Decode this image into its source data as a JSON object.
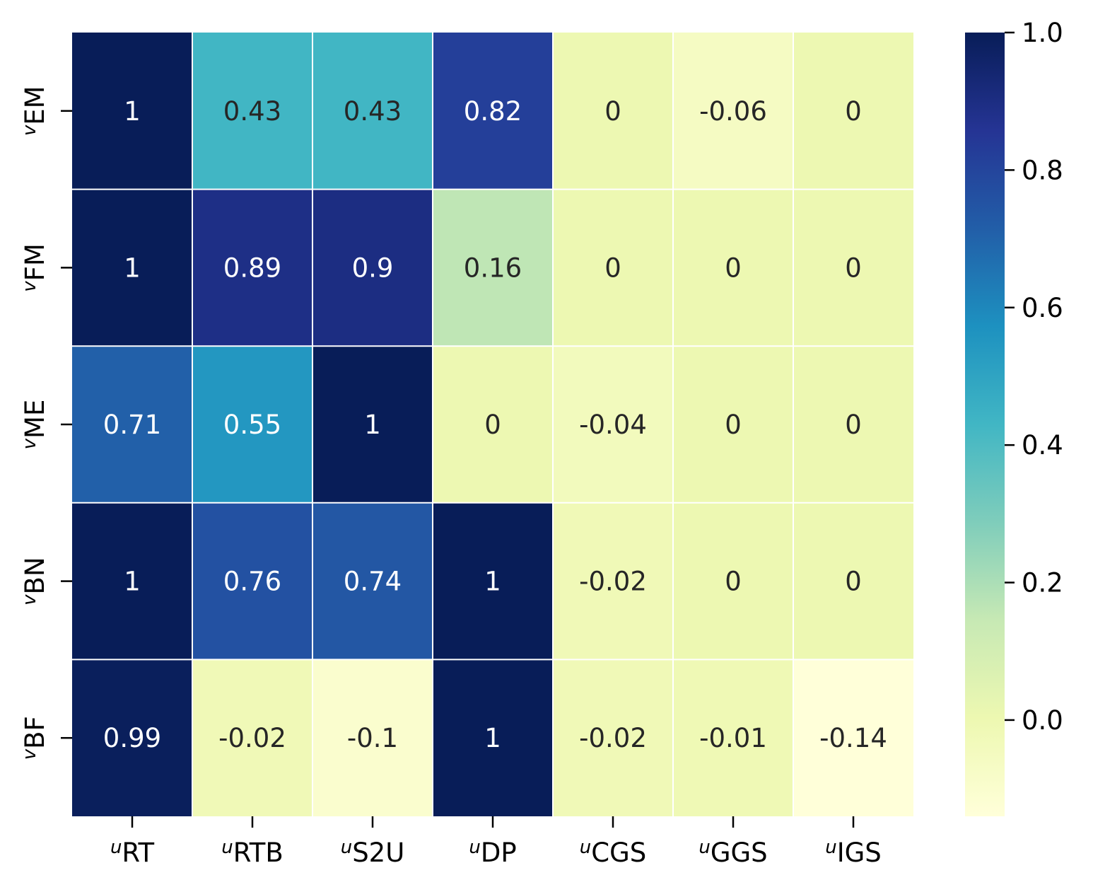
{
  "chart_data": {
    "type": "heatmap",
    "title": "",
    "xlabel": "",
    "ylabel": "",
    "x_tick_prefix": "u",
    "y_tick_prefix": "v",
    "columns": [
      "RT",
      "RTB",
      "S2U",
      "DP",
      "CGS",
      "GGS",
      "IGS"
    ],
    "rows": [
      "EM",
      "FM",
      "ME",
      "BN",
      "BF"
    ],
    "values": [
      [
        1,
        0.43,
        0.43,
        0.82,
        0,
        -0.06,
        0
      ],
      [
        1,
        0.89,
        0.9,
        0.16,
        0,
        0,
        0
      ],
      [
        0.71,
        0.55,
        1,
        0,
        -0.04,
        0,
        0
      ],
      [
        1,
        0.76,
        0.74,
        1,
        -0.02,
        0,
        0
      ],
      [
        0.99,
        -0.02,
        -0.1,
        1,
        -0.02,
        -0.01,
        -0.14
      ]
    ],
    "value_labels": [
      [
        "1",
        "0.43",
        "0.43",
        "0.82",
        "0",
        "-0.06",
        "0"
      ],
      [
        "1",
        "0.89",
        "0.9",
        "0.16",
        "0",
        "0",
        "0"
      ],
      [
        "0.71",
        "0.55",
        "1",
        "0",
        "-0.04",
        "0",
        "0"
      ],
      [
        "1",
        "0.76",
        "0.74",
        "1",
        "-0.02",
        "0",
        "0"
      ],
      [
        "0.99",
        "-0.02",
        "-0.1",
        "1",
        "-0.02",
        "-0.01",
        "-0.14"
      ]
    ],
    "colormap": "YlGnBu",
    "colorbar": {
      "vmin": -0.14,
      "vmax": 1.0,
      "ticks": [
        1.0,
        0.8,
        0.6,
        0.4,
        0.2,
        0.0
      ],
      "tick_labels": [
        "1.0",
        "0.8",
        "0.6",
        "0.4",
        "0.2",
        "0.0"
      ]
    },
    "colors": {
      "cmap_stops": [
        "#ffffd9",
        "#edf8b1",
        "#c7e9b4",
        "#7fcdbb",
        "#41b6c4",
        "#1d91c0",
        "#225ea8",
        "#253494",
        "#081d58"
      ],
      "dark_text": "#262626",
      "light_text": "#ffffff",
      "grid": "#ffffff",
      "tick": "#000000"
    }
  }
}
